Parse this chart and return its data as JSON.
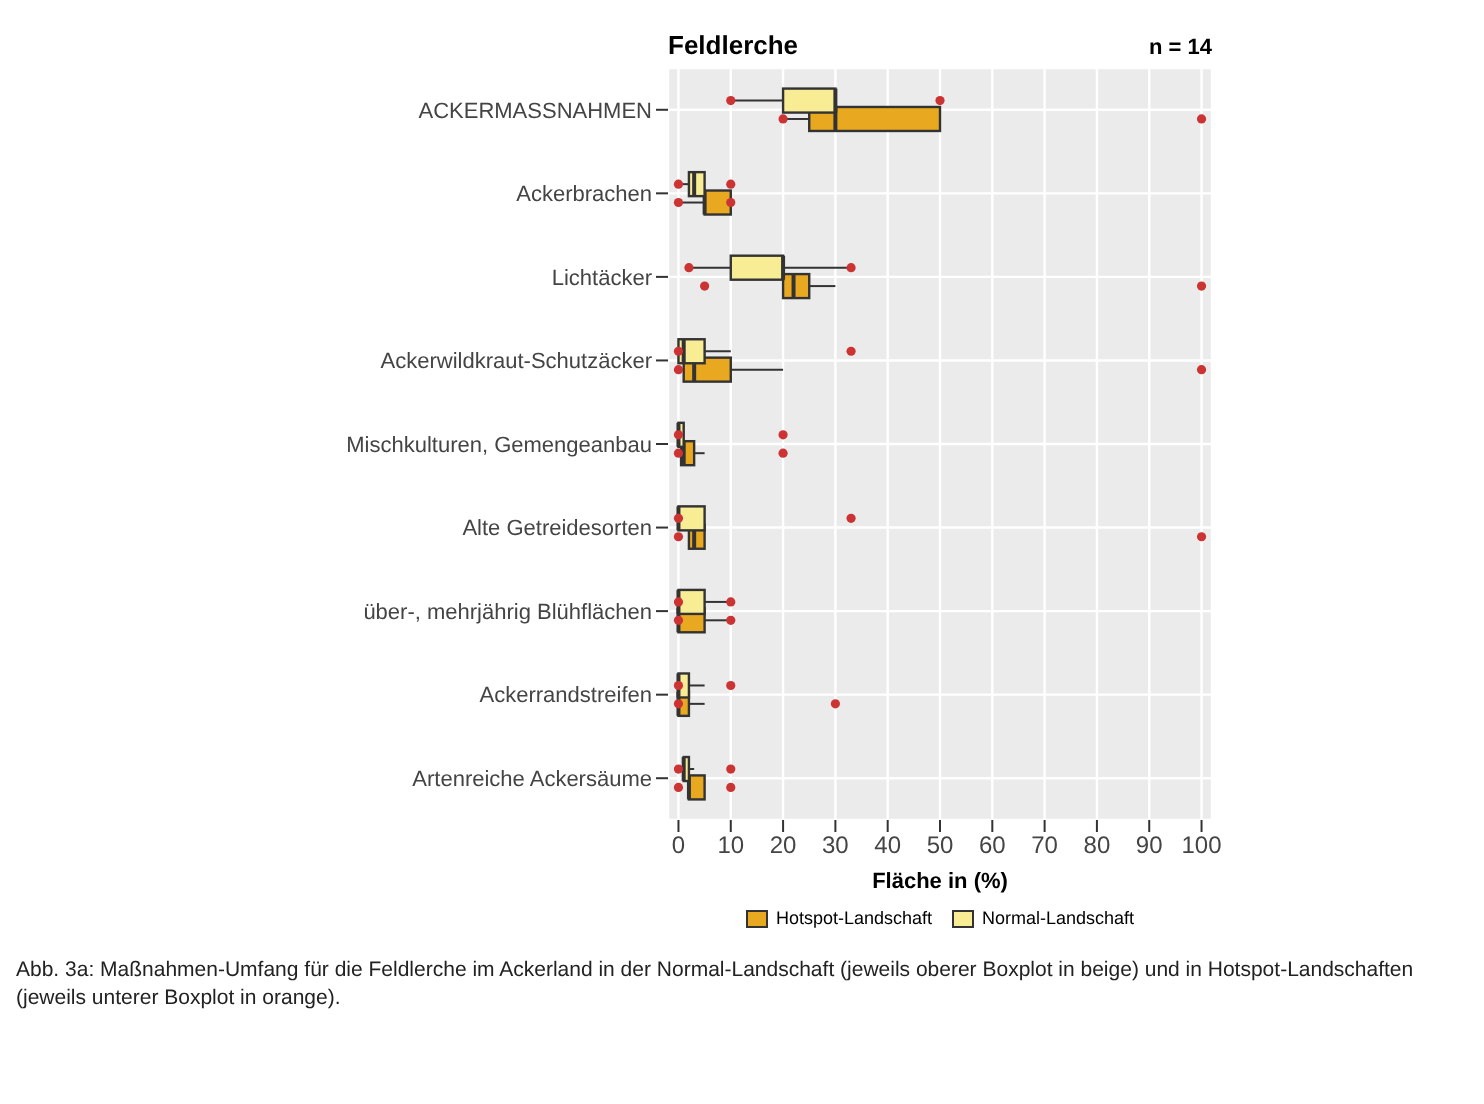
{
  "chart_data": {
    "type": "box",
    "title": "Feldlerche",
    "xlabel": "Fläche in (%)",
    "orientation": "horizontal",
    "annotations": [
      "n = 14",
      "Abb. 3a: Maßnahmen-Umfang für die Feldlerche im Ackerland in der Normal-Landschaft (jeweils oberer Boxplot in beige) und in Hotspot-Landschaften (jeweils unterer Boxplot in orange)."
    ],
    "categories": [
      "ACKERMASSNAHMEN",
      "Ackerbrachen",
      "Lichtäcker",
      "Ackerwildkraut-Schutzäcker",
      "Mischkulturen, Gemengeanbau",
      "Alte Getreidesorten",
      "über-, mehrjährig Blühflächen",
      "Ackerrandstreifen",
      "Artenreiche Ackersäume"
    ],
    "xlim": [
      -2,
      102
    ],
    "xticks": [
      0,
      10,
      20,
      30,
      40,
      50,
      60,
      70,
      80,
      90,
      100
    ],
    "grid": true,
    "legend": "bottom",
    "series": [
      {
        "name": "Hotspot-Landschaft",
        "color": "#e8a820",
        "boxes": [
          {
            "low": 20,
            "q1": 25,
            "median": 30,
            "q3": 50,
            "high": 50,
            "outliers": [
              20,
              100
            ]
          },
          {
            "low": 0,
            "q1": 5,
            "median": 5,
            "q3": 10,
            "high": 10,
            "outliers": [
              0,
              10
            ]
          },
          {
            "low": 20,
            "q1": 20,
            "median": 22,
            "q3": 25,
            "high": 30,
            "outliers": [
              5,
              100
            ]
          },
          {
            "low": 0,
            "q1": 1,
            "median": 3,
            "q3": 10,
            "high": 20,
            "outliers": [
              0,
              100
            ]
          },
          {
            "low": 0,
            "q1": 0.5,
            "median": 1,
            "q3": 3,
            "high": 5,
            "outliers": [
              0,
              20
            ]
          },
          {
            "low": 2,
            "q1": 2,
            "median": 3,
            "q3": 5,
            "high": 5,
            "outliers": [
              0,
              100
            ]
          },
          {
            "low": 0,
            "q1": 0,
            "median": 0,
            "q3": 5,
            "high": 10,
            "outliers": [
              0,
              10
            ]
          },
          {
            "low": 0,
            "q1": 0,
            "median": 0,
            "q3": 2,
            "high": 5,
            "outliers": [
              0,
              30
            ]
          },
          {
            "low": 2,
            "q1": 2,
            "median": 2,
            "q3": 5,
            "high": 5,
            "outliers": [
              0,
              10
            ]
          }
        ]
      },
      {
        "name": "Normal-Landschaft",
        "color": "#f8ec94",
        "boxes": [
          {
            "low": 10,
            "q1": 20,
            "median": 30,
            "q3": 30,
            "high": 30,
            "outliers": [
              10,
              50
            ]
          },
          {
            "low": 0,
            "q1": 2,
            "median": 3,
            "q3": 5,
            "high": 5,
            "outliers": [
              0,
              10
            ]
          },
          {
            "low": 2,
            "q1": 10,
            "median": 20,
            "q3": 20,
            "high": 33,
            "outliers": [
              2,
              33
            ]
          },
          {
            "low": 0,
            "q1": 0,
            "median": 1,
            "q3": 5,
            "high": 10,
            "outliers": [
              0,
              33
            ]
          },
          {
            "low": 0,
            "q1": 0,
            "median": 0,
            "q3": 1,
            "high": 1,
            "outliers": [
              0,
              20
            ]
          },
          {
            "low": 0,
            "q1": 0,
            "median": 0,
            "q3": 5,
            "high": 5,
            "outliers": [
              0,
              33
            ]
          },
          {
            "low": 0,
            "q1": 0,
            "median": 0,
            "q3": 5,
            "high": 10,
            "outliers": [
              0,
              10
            ]
          },
          {
            "low": 0,
            "q1": 0,
            "median": 0,
            "q3": 2,
            "high": 5,
            "outliers": [
              0,
              10
            ]
          },
          {
            "low": 0,
            "q1": 1,
            "median": 1,
            "q3": 2,
            "high": 3,
            "outliers": [
              0,
              10
            ]
          }
        ]
      }
    ]
  }
}
